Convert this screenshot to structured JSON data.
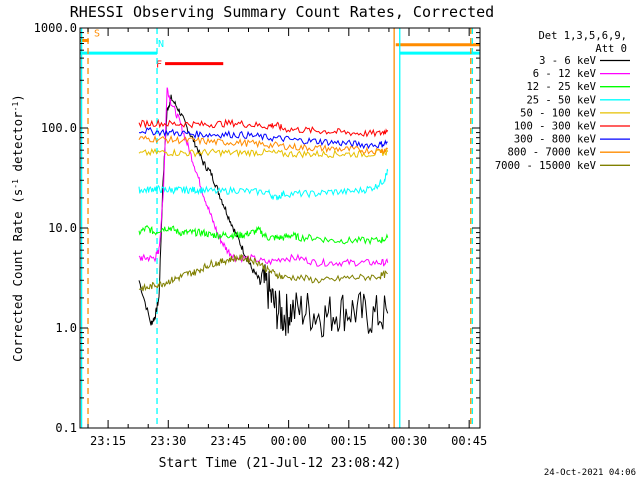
{
  "chart_data": {
    "type": "line",
    "title": "RHESSI Observing Summary Count Rates, Corrected",
    "xlabel": "Start Time (21-Jul-12 23:08:42)",
    "ylabel_main": "Corrected Count Rate (s",
    "ylabel_sup1": "-1",
    "ylabel_mid": " detector",
    "ylabel_sup2": "-1",
    "ylabel_end": ")",
    "yscale": "log",
    "ylim": [
      0.1,
      1000
    ],
    "xlim_minutes": [
      -0.7,
      99
    ],
    "grid": false,
    "legend_position": "top-right",
    "legend_header": [
      "Det 1,3,5,6,9,",
      "Att 0"
    ],
    "x_tick_labels": [
      {
        "label": "23:15",
        "minute": 6.3
      },
      {
        "label": "23:30",
        "minute": 21.3
      },
      {
        "label": "23:45",
        "minute": 36.3
      },
      {
        "label": "00:00",
        "minute": 51.3
      },
      {
        "label": "00:15",
        "minute": 66.3
      },
      {
        "label": "00:30",
        "minute": 81.3
      },
      {
        "label": "00:45",
        "minute": 96.3
      }
    ],
    "y_tick_labels": [
      "0.1",
      "1.0",
      "10.0",
      "100.0",
      "1000.0"
    ],
    "series": [
      {
        "name": "3 - 6 keV",
        "color": "#000000",
        "points": [
          [
            14,
            3
          ],
          [
            17,
            1.1
          ],
          [
            18,
            1.3
          ],
          [
            19,
            2
          ],
          [
            20,
            30
          ],
          [
            21,
            150
          ],
          [
            22,
            200
          ],
          [
            24,
            150
          ],
          [
            26,
            100
          ],
          [
            28,
            70
          ],
          [
            30,
            45
          ],
          [
            32,
            35
          ],
          [
            34,
            22
          ],
          [
            36,
            14
          ],
          [
            38,
            9
          ],
          [
            40,
            6
          ],
          [
            42,
            4
          ],
          [
            44,
            3
          ],
          [
            46,
            2.5
          ],
          [
            48,
            1.6
          ],
          [
            50,
            1.3
          ],
          [
            52,
            1.5
          ],
          [
            56,
            1.5
          ],
          [
            60,
            1.3
          ],
          [
            64,
            1.5
          ],
          [
            68,
            1.5
          ],
          [
            72,
            1.3
          ],
          [
            76,
            1.4
          ]
        ]
      },
      {
        "name": "6 - 12 keV",
        "color": "#ff00ff",
        "points": [
          [
            14,
            5
          ],
          [
            16,
            5
          ],
          [
            18,
            5
          ],
          [
            19,
            6
          ],
          [
            20,
            20
          ],
          [
            21,
            250
          ],
          [
            22,
            180
          ],
          [
            24,
            120
          ],
          [
            26,
            70
          ],
          [
            28,
            40
          ],
          [
            30,
            22
          ],
          [
            32,
            13
          ],
          [
            34,
            8
          ],
          [
            36,
            6
          ],
          [
            38,
            5
          ],
          [
            42,
            5
          ],
          [
            46,
            4.5
          ],
          [
            50,
            5
          ],
          [
            54,
            5
          ],
          [
            58,
            4.5
          ],
          [
            62,
            4.5
          ],
          [
            66,
            4.5
          ],
          [
            70,
            4.5
          ],
          [
            74,
            4.5
          ],
          [
            76,
            4.5
          ]
        ]
      },
      {
        "name": "12 - 25 keV",
        "color": "#00ff00",
        "points": [
          [
            14,
            9
          ],
          [
            16,
            10
          ],
          [
            18,
            9
          ],
          [
            20,
            10
          ],
          [
            22,
            10
          ],
          [
            24,
            9
          ],
          [
            26,
            9
          ],
          [
            28,
            9
          ],
          [
            30,
            9
          ],
          [
            32,
            8.5
          ],
          [
            34,
            8.5
          ],
          [
            36,
            8.5
          ],
          [
            38,
            8.5
          ],
          [
            40,
            8.5
          ],
          [
            42,
            9
          ],
          [
            44,
            9.5
          ],
          [
            46,
            8
          ],
          [
            48,
            8
          ],
          [
            50,
            8
          ],
          [
            52,
            8.5
          ],
          [
            54,
            8
          ],
          [
            58,
            8
          ],
          [
            62,
            7.5
          ],
          [
            66,
            7.5
          ],
          [
            70,
            7.5
          ],
          [
            74,
            7.5
          ],
          [
            76,
            8
          ]
        ]
      },
      {
        "name": "25 - 50 keV",
        "color": "#00ffff",
        "points": [
          [
            14,
            24
          ],
          [
            16,
            24
          ],
          [
            18,
            25
          ],
          [
            20,
            24
          ],
          [
            22,
            24
          ],
          [
            24,
            24
          ],
          [
            26,
            24
          ],
          [
            28,
            24
          ],
          [
            30,
            24
          ],
          [
            34,
            23
          ],
          [
            38,
            24
          ],
          [
            42,
            23
          ],
          [
            46,
            23
          ],
          [
            48,
            20
          ],
          [
            50,
            22
          ],
          [
            54,
            22
          ],
          [
            58,
            22
          ],
          [
            62,
            23
          ],
          [
            66,
            23
          ],
          [
            70,
            24
          ],
          [
            73,
            26
          ],
          [
            75,
            30
          ],
          [
            76,
            37
          ]
        ]
      },
      {
        "name": "50 - 100 keV",
        "color": "#e6c000",
        "points": [
          [
            14,
            55
          ],
          [
            18,
            57
          ],
          [
            22,
            57
          ],
          [
            26,
            56
          ],
          [
            30,
            57
          ],
          [
            34,
            57
          ],
          [
            38,
            56
          ],
          [
            42,
            57
          ],
          [
            46,
            57
          ],
          [
            50,
            55
          ],
          [
            54,
            55
          ],
          [
            58,
            55
          ],
          [
            62,
            55
          ],
          [
            66,
            55
          ],
          [
            70,
            55
          ],
          [
            74,
            56
          ],
          [
            76,
            58
          ]
        ]
      },
      {
        "name": "100 - 300 keV",
        "color": "#ff0000",
        "points": [
          [
            14,
            110
          ],
          [
            18,
            112
          ],
          [
            22,
            110
          ],
          [
            26,
            110
          ],
          [
            30,
            108
          ],
          [
            34,
            110
          ],
          [
            38,
            112
          ],
          [
            42,
            108
          ],
          [
            46,
            104
          ],
          [
            48,
            108
          ],
          [
            50,
            98
          ],
          [
            54,
            96
          ],
          [
            58,
            94
          ],
          [
            62,
            92
          ],
          [
            66,
            90
          ],
          [
            70,
            88
          ],
          [
            74,
            88
          ],
          [
            76,
            95
          ]
        ]
      },
      {
        "name": "300 - 800 keV",
        "color": "#0000ff",
        "points": [
          [
            14,
            95
          ],
          [
            18,
            92
          ],
          [
            22,
            90
          ],
          [
            26,
            88
          ],
          [
            30,
            86
          ],
          [
            34,
            86
          ],
          [
            38,
            86
          ],
          [
            42,
            84
          ],
          [
            46,
            80
          ],
          [
            50,
            78
          ],
          [
            54,
            75
          ],
          [
            58,
            74
          ],
          [
            62,
            72
          ],
          [
            66,
            70
          ],
          [
            70,
            68
          ],
          [
            74,
            68
          ],
          [
            76,
            72
          ]
        ]
      },
      {
        "name": "800 - 7000 keV",
        "color": "#ff8c00",
        "points": [
          [
            14,
            78
          ],
          [
            18,
            78
          ],
          [
            22,
            76
          ],
          [
            26,
            75
          ],
          [
            30,
            74
          ],
          [
            34,
            72
          ],
          [
            38,
            72
          ],
          [
            42,
            70
          ],
          [
            46,
            68
          ],
          [
            50,
            66
          ],
          [
            54,
            64
          ],
          [
            58,
            63
          ],
          [
            62,
            62
          ],
          [
            66,
            61
          ],
          [
            70,
            60
          ],
          [
            74,
            59
          ],
          [
            76,
            62
          ]
        ]
      },
      {
        "name": "7000 - 15000 keV",
        "color": "#808000",
        "points": [
          [
            14,
            2.5
          ],
          [
            16,
            2.5
          ],
          [
            18,
            2.7
          ],
          [
            20,
            2.8
          ],
          [
            22,
            3
          ],
          [
            24,
            3.2
          ],
          [
            26,
            3.5
          ],
          [
            28,
            3.6
          ],
          [
            30,
            4
          ],
          [
            32,
            4.4
          ],
          [
            34,
            4.5
          ],
          [
            36,
            4.8
          ],
          [
            38,
            5
          ],
          [
            40,
            5
          ],
          [
            42,
            4.8
          ],
          [
            44,
            4.5
          ],
          [
            46,
            3.8
          ],
          [
            48,
            3.5
          ],
          [
            50,
            3.2
          ],
          [
            54,
            3.2
          ],
          [
            58,
            3
          ],
          [
            62,
            3
          ],
          [
            66,
            3.2
          ],
          [
            70,
            3.2
          ],
          [
            74,
            3.3
          ],
          [
            76,
            3.5
          ]
        ]
      }
    ],
    "flags": [
      {
        "label": "S",
        "color": "#ff8c00",
        "start": -0.7,
        "end": 1.5,
        "y": 750
      },
      {
        "label": "N",
        "color": "#00ffff",
        "start": -0.7,
        "end": 18.5,
        "y": 560
      },
      {
        "label": "F",
        "color": "#ff0000",
        "start": 20.5,
        "end": 35,
        "y": 440
      },
      {
        "label": "",
        "color": "#ff8c00",
        "start": 78,
        "end": 99,
        "y": 680
      },
      {
        "label": "",
        "color": "#00ffff",
        "start": 79,
        "end": 99,
        "y": 560
      }
    ],
    "vertical_lines": [
      {
        "minute": 1.3,
        "color": "#ff8c00",
        "style": "dashed"
      },
      {
        "minute": 18.5,
        "color": "#00ffff",
        "style": "dashed"
      },
      {
        "minute": 96.7,
        "color": "#ff8c00",
        "style": "dashed"
      },
      {
        "minute": -0.3,
        "color": "#00ffff",
        "style": "solid"
      },
      {
        "minute": 77.6,
        "color": "#ff8c00",
        "style": "solid"
      },
      {
        "minute": 79.0,
        "color": "#00ffff",
        "style": "solid"
      },
      {
        "minute": 97.1,
        "color": "#00ffff",
        "style": "dashed"
      }
    ],
    "footer_date": "24-Oct-2021 04:06"
  }
}
